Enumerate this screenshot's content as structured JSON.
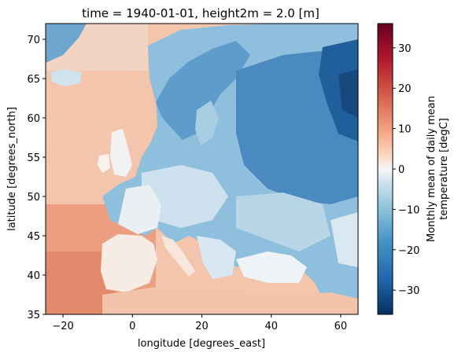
{
  "chart_data": {
    "type": "heatmap",
    "title": "time = 1940-01-01, height2m = 2.0 [m]",
    "xlabel": "longitude [degrees_east]",
    "ylabel": "latitude [degrees_north]",
    "xlim": [
      -25,
      65
    ],
    "ylim": [
      35,
      72
    ],
    "x_ticks": [
      -20,
      0,
      20,
      40,
      60
    ],
    "y_ticks": [
      35,
      40,
      45,
      50,
      55,
      60,
      65,
      70
    ],
    "x_tick_labels": [
      "−20",
      "0",
      "20",
      "40",
      "60"
    ],
    "y_tick_labels": [
      "35",
      "40",
      "45",
      "50",
      "55",
      "60",
      "65",
      "70"
    ],
    "colorbar": {
      "label_lines": [
        "Monthly mean of daily mean",
        "temperature [degC]"
      ],
      "cmap": "RdBu_r",
      "vmin": -36,
      "vmax": 36,
      "ticks": [
        -30,
        -20,
        -10,
        0,
        10,
        20,
        30
      ],
      "tick_labels": [
        "−30",
        "−20",
        "−10",
        "0",
        "10",
        "20",
        "30"
      ]
    },
    "field_description_points": [
      {
        "lon": -22,
        "lat": 38,
        "value": 18
      },
      {
        "lon": -10,
        "lat": 60,
        "value": 8
      },
      {
        "lon": 0,
        "lat": 40,
        "value": 14
      },
      {
        "lon": 20,
        "lat": 38,
        "value": 10
      },
      {
        "lon": 10,
        "lat": 50,
        "value": -6
      },
      {
        "lon": 20,
        "lat": 62,
        "value": -16
      },
      {
        "lon": 40,
        "lat": 55,
        "value": -20
      },
      {
        "lon": 58,
        "lat": 62,
        "value": -30
      },
      {
        "lon": 30,
        "lat": 45,
        "value": -8
      },
      {
        "lon": 40,
        "lat": 40,
        "value": 0
      }
    ]
  }
}
